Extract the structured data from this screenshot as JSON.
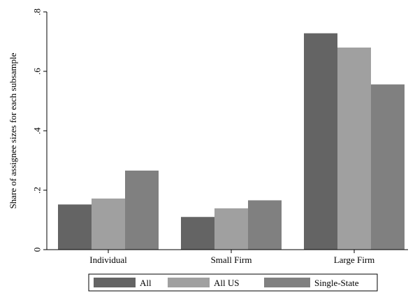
{
  "chart_data": {
    "type": "bar",
    "title": "",
    "xlabel": "",
    "ylabel": "Share of assignee sizes for each subsample",
    "categories": [
      "Individual",
      "Small Firm",
      "Large Firm"
    ],
    "series": [
      {
        "name": "All",
        "color": "#646464",
        "values": [
          0.152,
          0.11,
          0.728
        ]
      },
      {
        "name": "All US",
        "color": "#a0a0a0",
        "values": [
          0.172,
          0.139,
          0.68
        ]
      },
      {
        "name": "Single-State",
        "color": "#808080",
        "values": [
          0.266,
          0.166,
          0.556
        ]
      }
    ],
    "ylim": [
      0,
      0.8
    ],
    "yticks": [
      0,
      0.2,
      0.4,
      0.6,
      0.8
    ],
    "ytick_labels": [
      "0",
      ".2",
      ".4",
      ".6",
      ".8"
    ],
    "grid": false,
    "legend_position": "bottom"
  }
}
